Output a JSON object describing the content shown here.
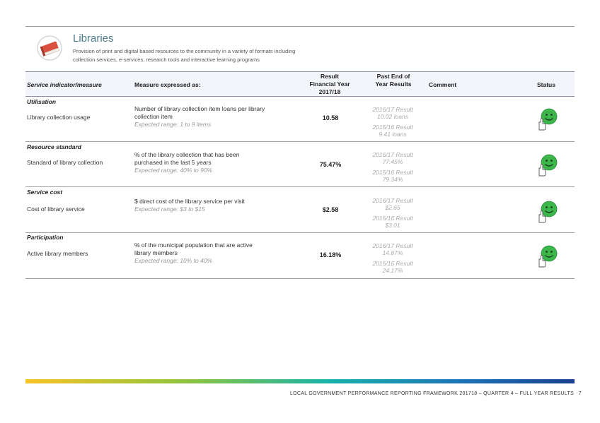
{
  "section": {
    "icon": "book-icon",
    "title": "Libraries",
    "description_line1": "Provision of print and digital based resources to the community in a variety of formats including",
    "description_line2": "collection services, e-services, research tools and interactive learning programs"
  },
  "table": {
    "headers": {
      "indicator": "Service indicator/measure",
      "measure": "Measure expressed as:",
      "result_l1": "Result",
      "result_l2": "Financial Year",
      "result_l3": "2017/18",
      "past_l1": "Past End of",
      "past_l2": "Year Results",
      "comment": "Comment",
      "status": "Status"
    },
    "rows": [
      {
        "category": "Utilisation",
        "indicator": "Library collection usage",
        "measure_l1": "Number of library collection item loans per library",
        "measure_l2": "collection item",
        "range": "Expected range: 1 to 9 items",
        "result": "10.58",
        "past1_label": "2016/17 Result",
        "past1_value": "10.02 loans",
        "past2_label": "2015/16 Result",
        "past2_value": "9.41 loans",
        "status_icon": "smiley-thumbs-up-icon"
      },
      {
        "category": "Resource standard",
        "indicator": "Standard of library collection",
        "measure_l1": "% of the library collection that has been",
        "measure_l2": "purchased in the last 5 years",
        "range": "Expected range: 40% to 90%",
        "result": "75.47%",
        "past1_label": "2016/17 Result",
        "past1_value": "77.45%",
        "past2_label": "2015/16 Result",
        "past2_value": "79.34%",
        "status_icon": "smiley-thumbs-up-icon"
      },
      {
        "category": "Service cost",
        "indicator": "Cost of library service",
        "measure_l1": "$ direct cost of the library service per visit",
        "measure_l2": "",
        "range": "Expected range: $3 to $15",
        "result": "$2.58",
        "past1_label": "2016/17 Result",
        "past1_value": "$2.65",
        "past2_label": "2015/16 Result",
        "past2_value": "$3.01",
        "status_icon": "smiley-thumbs-up-icon"
      },
      {
        "category": "Participation",
        "indicator": "Active library members",
        "measure_l1": "% of the municipal population that are active",
        "measure_l2": "library members",
        "range": "Expected range: 10% to 40%",
        "result": "16.18%",
        "past1_label": "2016/17 Result",
        "past1_value": "14.87%",
        "past2_label": "2015/16 Result",
        "past2_value": "24.17%",
        "status_icon": "smiley-thumbs-up-icon"
      }
    ]
  },
  "footer": {
    "text": "LOCAL GOVERNMENT PERFORMANCE REPORTING FRAMEWORK 201718 – QUARTER 4 – FULL YEAR RESULTS",
    "page_number": "7"
  },
  "colors": {
    "title": "#4a7a8c",
    "smiley": "#3cb54a",
    "book": "#d9503f"
  }
}
